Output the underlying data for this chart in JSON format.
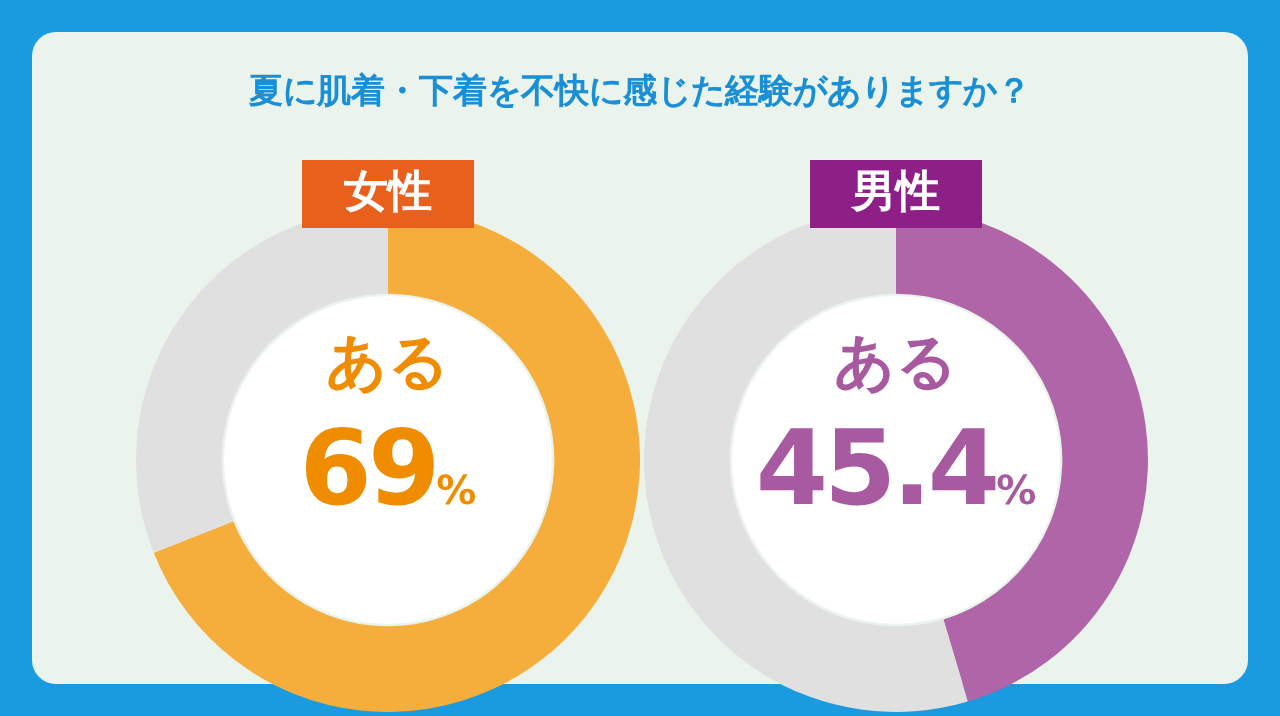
{
  "chart_data": [
    {
      "type": "donut",
      "title": "女性",
      "annotations": [
        "夏に肌着・下着を不快に感じた経験がありますか？"
      ],
      "categories": [
        "ある",
        null
      ],
      "values": [
        69,
        31
      ],
      "colors": [
        "#f5ae3c",
        "#e0e0e0"
      ],
      "value_labels": [
        "69%",
        null
      ],
      "legend": false
    },
    {
      "type": "donut",
      "title": "男性",
      "categories": [
        "ある",
        null
      ],
      "values": [
        45.4,
        54.6
      ],
      "colors": [
        "#b065a8",
        "#e0e0e0"
      ],
      "value_labels": [
        "45.4%",
        null
      ],
      "legend": false
    }
  ]
}
